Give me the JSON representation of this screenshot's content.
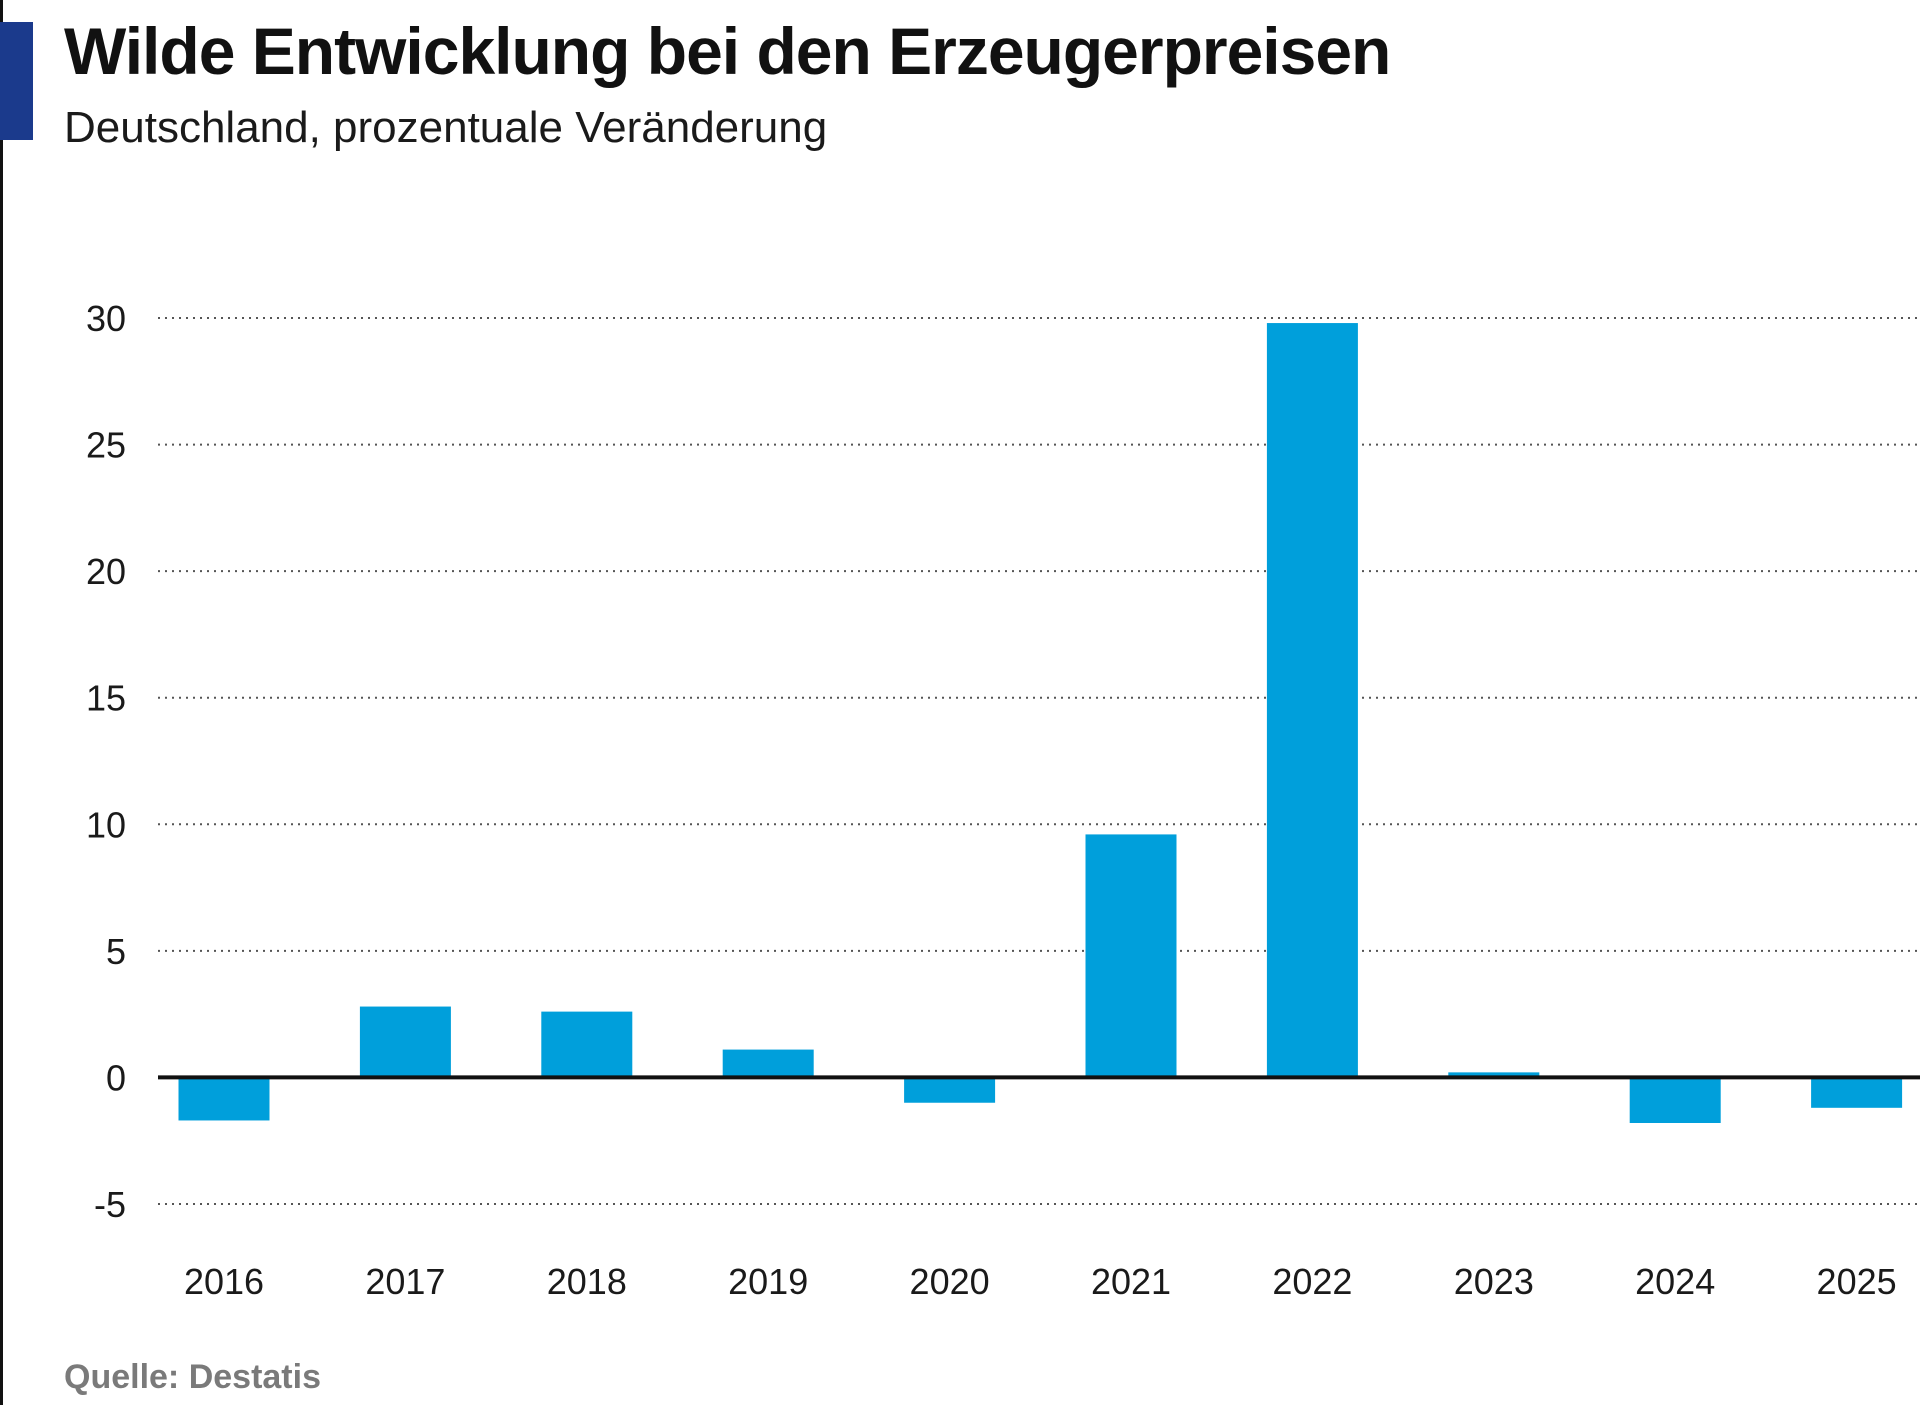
{
  "header": {
    "title": "Wilde Entwicklung bei den Erzeugerpreisen",
    "subtitle": "Deutschland, prozentuale Veränderung"
  },
  "source": "Quelle: Destatis",
  "colors": {
    "bar": "#009fdb",
    "accent": "#1b3a8c",
    "zero_line": "#111111",
    "grid": "#555555"
  },
  "chart_data": {
    "type": "bar",
    "title": "Wilde Entwicklung bei den Erzeugerpreisen",
    "subtitle": "Deutschland, prozentuale Veränderung",
    "categories": [
      "2016",
      "2017",
      "2018",
      "2019",
      "2020",
      "2021",
      "2022",
      "2023",
      "2024",
      "2025"
    ],
    "values": [
      -1.7,
      2.8,
      2.6,
      1.1,
      -1.0,
      9.6,
      29.8,
      0.2,
      -1.8,
      -1.2
    ],
    "xlabel": "",
    "ylabel": "",
    "ylim": [
      -5,
      30
    ],
    "yticks": [
      30,
      25,
      20,
      15,
      10,
      5,
      0,
      -5
    ],
    "grid": true,
    "grid_style": "dotted",
    "legend": "none"
  }
}
